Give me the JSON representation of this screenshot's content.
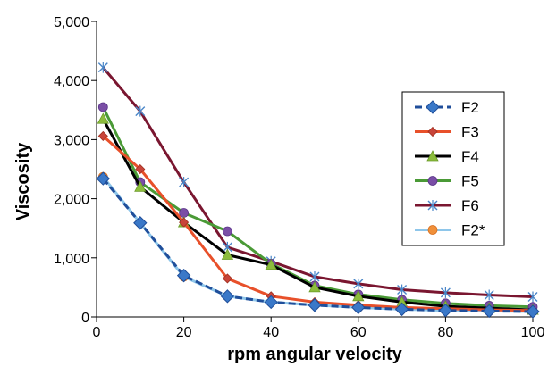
{
  "chart_data": {
    "type": "line",
    "title": "",
    "xlabel": "rpm angular velocity",
    "ylabel": "Viscosity",
    "xlim": [
      0,
      100
    ],
    "ylim": [
      0,
      5000
    ],
    "x_ticks": [
      0,
      20,
      40,
      60,
      80,
      100
    ],
    "y_ticks": [
      0,
      1000,
      2000,
      3000,
      4000,
      5000
    ],
    "x_tick_labels": [
      "0",
      "20",
      "40",
      "60",
      "80",
      "100"
    ],
    "y_tick_labels": [
      "0",
      "1,000",
      "2,000",
      "3,000",
      "4,000",
      "5,000"
    ],
    "grid": false,
    "legend_position": "right",
    "x": [
      1.5,
      10,
      20,
      30,
      40,
      50,
      60,
      70,
      80,
      90,
      100
    ],
    "series": [
      {
        "name": "F2",
        "color": "#1f4e9a",
        "marker": "diamond",
        "dashed": true,
        "values": [
          2340,
          1590,
          700,
          350,
          250,
          200,
          160,
          130,
          110,
          100,
          90
        ]
      },
      {
        "name": "F3",
        "color": "#e8502a",
        "marker": "diamond-small",
        "values": [
          3060,
          2500,
          1600,
          650,
          350,
          250,
          200,
          160,
          140,
          120,
          110
        ]
      },
      {
        "name": "F4",
        "color": "#000000",
        "marker": "triangle",
        "values": [
          3350,
          2200,
          1600,
          1050,
          880,
          500,
          350,
          250,
          180,
          150,
          120
        ]
      },
      {
        "name": "F5",
        "color": "#4a9a36",
        "marker": "circle-purple",
        "values": [
          3550,
          2280,
          1760,
          1450,
          900,
          530,
          380,
          290,
          230,
          190,
          170
        ]
      },
      {
        "name": "F6",
        "color": "#7a1630",
        "marker": "star",
        "values": [
          4220,
          3480,
          2280,
          1180,
          940,
          680,
          560,
          460,
          410,
          370,
          340
        ]
      },
      {
        "name": "F2*",
        "color": "#8ec6ea",
        "marker": "circle-orange",
        "values": [
          2370,
          1590,
          680,
          350,
          250,
          200,
          160,
          130,
          110,
          100,
          90
        ]
      }
    ]
  }
}
